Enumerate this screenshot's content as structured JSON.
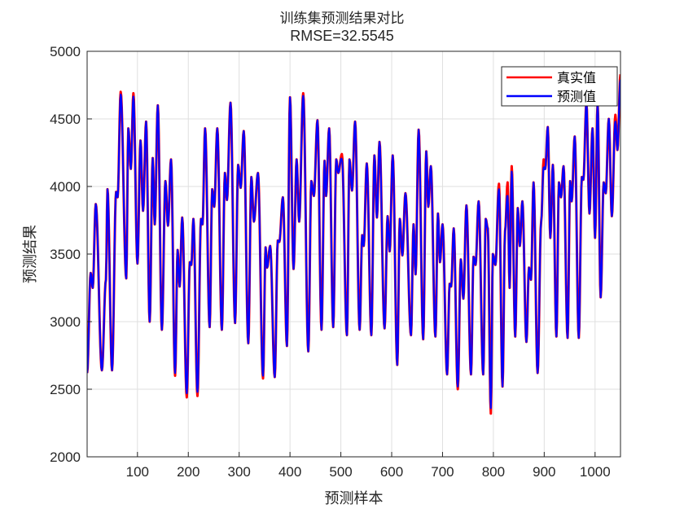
{
  "chart_data": {
    "type": "line",
    "title": "训练集预测结果对比",
    "subtitle": "RMSE=32.5545",
    "xlabel": "预测样本",
    "ylabel": "预测结果",
    "xlim": [
      1,
      1050
    ],
    "ylim": [
      2000,
      5000
    ],
    "xticks": [
      100,
      200,
      300,
      400,
      500,
      600,
      700,
      800,
      900,
      1000
    ],
    "yticks": [
      2000,
      2500,
      3000,
      3500,
      4000,
      4500,
      5000
    ],
    "grid": true,
    "legend_position": "top-right",
    "colors": {
      "actual": "#ff0000",
      "predicted": "#0000ff"
    },
    "series": [
      {
        "name": "真实值",
        "color": "#ff0000"
      },
      {
        "name": "预测值",
        "color": "#0000ff"
      }
    ],
    "extrema": [
      [
        1,
        2620
      ],
      [
        8,
        3360
      ],
      [
        12,
        3250
      ],
      [
        18,
        3870
      ],
      [
        30,
        2640
      ],
      [
        38,
        3310
      ],
      [
        41,
        3980
      ],
      [
        50,
        2640
      ],
      [
        58,
        3960
      ],
      [
        61,
        3920
      ],
      [
        67,
        4700
      ],
      [
        78,
        3320
      ],
      [
        82,
        4430
      ],
      [
        87,
        4130
      ],
      [
        92,
        4690
      ],
      [
        100,
        3430
      ],
      [
        106,
        4340
      ],
      [
        111,
        3820
      ],
      [
        117,
        4480
      ],
      [
        124,
        3000
      ],
      [
        130,
        4210
      ],
      [
        134,
        3720
      ],
      [
        140,
        4600
      ],
      [
        148,
        2940
      ],
      [
        155,
        4040
      ],
      [
        160,
        3710
      ],
      [
        166,
        4200
      ],
      [
        174,
        2600
      ],
      [
        179,
        3530
      ],
      [
        183,
        3260
      ],
      [
        188,
        3770
      ],
      [
        197,
        2440
      ],
      [
        203,
        3440
      ],
      [
        206,
        3420
      ],
      [
        210,
        3760
      ],
      [
        218,
        2450
      ],
      [
        225,
        3760
      ],
      [
        228,
        3720
      ],
      [
        233,
        4430
      ],
      [
        242,
        2960
      ],
      [
        247,
        3980
      ],
      [
        251,
        3850
      ],
      [
        257,
        4430
      ],
      [
        266,
        2940
      ],
      [
        272,
        4100
      ],
      [
        276,
        3900
      ],
      [
        283,
        4620
      ],
      [
        292,
        2990
      ],
      [
        298,
        4160
      ],
      [
        303,
        3990
      ],
      [
        309,
        4410
      ],
      [
        318,
        2840
      ],
      [
        324,
        4070
      ],
      [
        329,
        3740
      ],
      [
        337,
        4100
      ],
      [
        347,
        2580
      ],
      [
        352,
        3550
      ],
      [
        355,
        3400
      ],
      [
        361,
        3560
      ],
      [
        370,
        2590
      ],
      [
        376,
        3600
      ],
      [
        379,
        3590
      ],
      [
        386,
        3920
      ],
      [
        394,
        2820
      ],
      [
        400,
        4660
      ],
      [
        407,
        3390
      ],
      [
        413,
        4200
      ],
      [
        418,
        3740
      ],
      [
        426,
        4690
      ],
      [
        436,
        2780
      ],
      [
        442,
        4040
      ],
      [
        447,
        3930
      ],
      [
        454,
        4490
      ],
      [
        462,
        2940
      ],
      [
        468,
        4190
      ],
      [
        471,
        3930
      ],
      [
        477,
        4430
      ],
      [
        485,
        2960
      ],
      [
        491,
        4200
      ],
      [
        495,
        4100
      ],
      [
        502,
        4240
      ],
      [
        512,
        2900
      ],
      [
        517,
        4200
      ],
      [
        522,
        3970
      ],
      [
        528,
        4480
      ],
      [
        537,
        2940
      ],
      [
        542,
        3640
      ],
      [
        545,
        3560
      ],
      [
        551,
        4170
      ],
      [
        560,
        2900
      ],
      [
        566,
        4230
      ],
      [
        571,
        3770
      ],
      [
        576,
        4330
      ],
      [
        586,
        2950
      ],
      [
        592,
        3780
      ],
      [
        596,
        3520
      ],
      [
        602,
        4230
      ],
      [
        611,
        2680
      ],
      [
        616,
        3760
      ],
      [
        621,
        3490
      ],
      [
        627,
        3950
      ],
      [
        638,
        2900
      ],
      [
        643,
        3720
      ],
      [
        647,
        3350
      ],
      [
        653,
        4420
      ],
      [
        662,
        2870
      ],
      [
        668,
        4260
      ],
      [
        672,
        3850
      ],
      [
        677,
        4150
      ],
      [
        686,
        2890
      ],
      [
        691,
        3800
      ],
      [
        695,
        3440
      ],
      [
        700,
        3720
      ],
      [
        709,
        2610
      ],
      [
        714,
        3280
      ],
      [
        717,
        3260
      ],
      [
        722,
        3690
      ],
      [
        730,
        2500
      ],
      [
        736,
        3460
      ],
      [
        741,
        3170
      ],
      [
        747,
        3860
      ],
      [
        756,
        2610
      ],
      [
        761,
        3480
      ],
      [
        765,
        3420
      ],
      [
        771,
        3890
      ],
      [
        780,
        2610
      ],
      [
        785,
        3760
      ],
      [
        789,
        3690
      ],
      [
        795,
        2320
      ],
      [
        799,
        3500
      ],
      [
        804,
        3420
      ],
      [
        811,
        4020
      ],
      [
        818,
        2520
      ],
      [
        823,
        3670
      ],
      [
        828,
        4030
      ],
      [
        832,
        3250
      ],
      [
        836,
        4150
      ],
      [
        843,
        2890
      ],
      [
        848,
        3840
      ],
      [
        852,
        3560
      ],
      [
        857,
        3890
      ],
      [
        865,
        2850
      ],
      [
        870,
        3400
      ],
      [
        874,
        3310
      ],
      [
        879,
        4030
      ],
      [
        887,
        2620
      ],
      [
        894,
        3740
      ],
      [
        899,
        4200
      ],
      [
        902,
        4130
      ],
      [
        907,
        4440
      ],
      [
        912,
        3620
      ],
      [
        917,
        4160
      ],
      [
        924,
        2890
      ],
      [
        929,
        4030
      ],
      [
        933,
        3920
      ],
      [
        938,
        4150
      ],
      [
        946,
        2880
      ],
      [
        951,
        4040
      ],
      [
        954,
        3890
      ],
      [
        960,
        4370
      ],
      [
        968,
        2880
      ],
      [
        974,
        4070
      ],
      [
        977,
        4050
      ],
      [
        983,
        4620
      ],
      [
        989,
        3800
      ],
      [
        995,
        4430
      ],
      [
        1000,
        3620
      ],
      [
        1005,
        4620
      ],
      [
        1011,
        3180
      ],
      [
        1017,
        4030
      ],
      [
        1021,
        3950
      ],
      [
        1027,
        4500
      ],
      [
        1033,
        3780
      ],
      [
        1040,
        4530
      ],
      [
        1044,
        4270
      ],
      [
        1050,
        4830
      ]
    ],
    "prediction_offsets": [
      [
        197,
        30
      ],
      [
        218,
        30
      ],
      [
        795,
        40
      ],
      [
        730,
        20
      ],
      [
        174,
        20
      ],
      [
        347,
        20
      ],
      [
        426,
        -20
      ],
      [
        67,
        -20
      ],
      [
        92,
        -25
      ],
      [
        811,
        -40
      ],
      [
        828,
        -60
      ],
      [
        828,
        -40
      ],
      [
        899,
        -60
      ],
      [
        1050,
        -40
      ],
      [
        502,
        -40
      ],
      [
        836,
        -40
      ],
      [
        1040,
        -50
      ]
    ]
  }
}
